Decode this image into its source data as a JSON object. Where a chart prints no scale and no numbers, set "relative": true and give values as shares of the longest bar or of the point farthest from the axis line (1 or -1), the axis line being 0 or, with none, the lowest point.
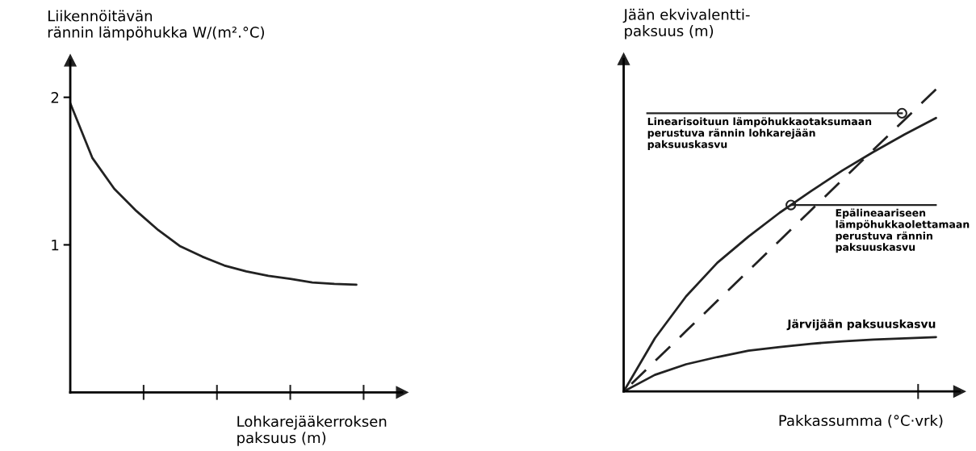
{
  "chart_data": [
    {
      "type": "line",
      "xlabel": "Lohkarejääkerroksen\npaksuus (m)",
      "ylabel": "Liikennöitävän\nrännin lämpöhukka W/(m².°C)",
      "categories": [
        null,
        null,
        null,
        null,
        null,
        null,
        null,
        null,
        null,
        null,
        null,
        null,
        null,
        null
      ],
      "ylim": [
        0,
        2.25
      ],
      "yticks": [
        1,
        2
      ],
      "tick_labels": "y",
      "grid": false,
      "marker": "none",
      "series": [
        {
          "color": "#222222",
          "line_style": "solid",
          "values": [
            1.96,
            1.59,
            1.38,
            1.23,
            1.1,
            0.99,
            0.92,
            0.86,
            0.82,
            0.79,
            0.77,
            0.745,
            0.735,
            0.73
          ]
        }
      ]
    },
    {
      "type": "line",
      "relative": true,
      "xlabel": "Pakkassumma (°C·vrk)",
      "ylabel": "Jään ekvivalentti-\npaksuus (m)",
      "categories": [
        null,
        null,
        null,
        null,
        null,
        null,
        null,
        null,
        null,
        null,
        null
      ],
      "tick_labels": false,
      "grid": false,
      "marker": "none",
      "series": [
        {
          "color": "#222222",
          "line_style": "solid",
          "values": [
            0,
            0.176,
            0.315,
            0.426,
            0.513,
            0.592,
            0.663,
            0.731,
            0.793,
            0.851,
            0.905
          ]
        },
        {
          "color": "#222222",
          "line_style": "dashed",
          "values": [
            0,
            0.1,
            0.2,
            0.3,
            0.4,
            0.5,
            0.6,
            0.7,
            0.8,
            0.9,
            1.0
          ]
        },
        {
          "name": "Järvijään paksuuskasvu",
          "color": "#222222",
          "line_style": "solid",
          "values": [
            0,
            0.055,
            0.09,
            0.114,
            0.135,
            0.147,
            0.158,
            0.166,
            0.172,
            0.176,
            0.18
          ]
        }
      ],
      "annotations": [
        "Linearisoituun lämpöhukkaotaksumaan\nperustuva rännin lohkarejään\npaksuuskasvu",
        "Epälineaariseen\nlämpöhukkaolettamaan\nperustuva rännin\npaksuuskasvu"
      ]
    }
  ]
}
